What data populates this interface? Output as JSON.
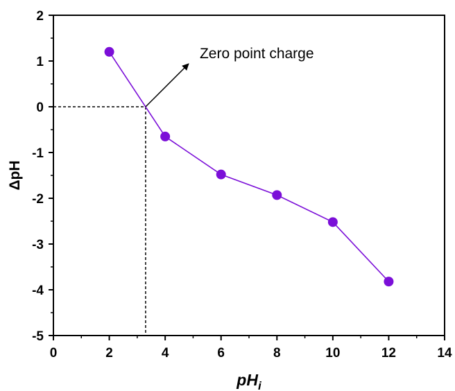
{
  "chart_data": {
    "type": "line",
    "xlabel": "pH",
    "xlabel_subscript": "i",
    "ylabel": "ΔpH",
    "xlim": [
      0,
      14
    ],
    "ylim": [
      -5,
      2
    ],
    "xticks": [
      0,
      2,
      4,
      6,
      8,
      10,
      12,
      14
    ],
    "yticks": [
      -5,
      -4,
      -3,
      -2,
      -1,
      0,
      1,
      2
    ],
    "xtick_labels": [
      "0",
      "2",
      "4",
      "6",
      "8",
      "10",
      "12",
      "14"
    ],
    "ytick_labels": [
      "-5",
      "-4",
      "-3",
      "-2",
      "-1",
      "0",
      "1",
      "2"
    ],
    "grid": false,
    "series": [
      {
        "x": [
          2,
          4,
          6,
          8,
          10,
          12
        ],
        "y": [
          1.2,
          -0.65,
          -1.48,
          -1.93,
          -2.52,
          -3.82
        ],
        "color": "#7b0fd8",
        "marker": "circle"
      }
    ],
    "annotations": [
      {
        "text": "Zero point charge",
        "point": [
          3.3,
          0
        ]
      }
    ],
    "reference_lines": [
      {
        "style": "dashed",
        "from": [
          0,
          0
        ],
        "to": [
          3.3,
          0
        ]
      },
      {
        "style": "dashed",
        "from": [
          3.3,
          0
        ],
        "to": [
          3.3,
          -5
        ]
      }
    ]
  }
}
